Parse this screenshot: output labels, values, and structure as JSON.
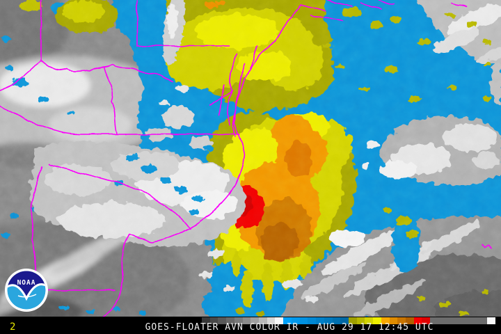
{
  "image": {
    "caption": "GOES-FLOATER AVN COLOR IR - AUG 29 17 12:45 UTC",
    "frame_label": "2",
    "logo_text": "NOAA"
  },
  "palette": {
    "ocean_blue": "#0894da",
    "cloud_gray_base": "#8a8a8a",
    "cold_top_yellow": "#d6d600",
    "cold_top_olive": "#a8a800",
    "colder_top_orange": "#f49800",
    "deep_orange": "#d07800",
    "coldest_red": "#f40000",
    "state_border_magenta": "#fa00fa",
    "caption_color": "#f0f0f0",
    "frame_number_color": "#e8e800",
    "bar_background": "#000000",
    "logo_navy": "#1a1a8e",
    "logo_sky": "#2aa6de"
  },
  "colorbar": {
    "segments": [
      "#383838",
      "#484848",
      "#585858",
      "#686868",
      "#7a7a7a",
      "#8c8c8c",
      "#a0a0a0",
      "#b8b8b8",
      "#d8d8d8",
      "#f8f8f8",
      "#00a0f8",
      "#0098ec",
      "#0090e0",
      "#0088d4",
      "#0080c8",
      "#0078bc",
      "#0070b0",
      "#0068a4",
      "#a0a000",
      "#b8b800",
      "#d4d400",
      "#f0f000",
      "#f8a800",
      "#e08c00",
      "#c87400",
      "#b06000",
      "#f80000",
      "#e00000",
      "#6c6c6c",
      "#6c6c6c",
      "#6c6c6c",
      "#6c6c6c",
      "#6c6c6c",
      "#6c6c6c",
      "#6c6c6c",
      "#f8f8f8"
    ]
  }
}
